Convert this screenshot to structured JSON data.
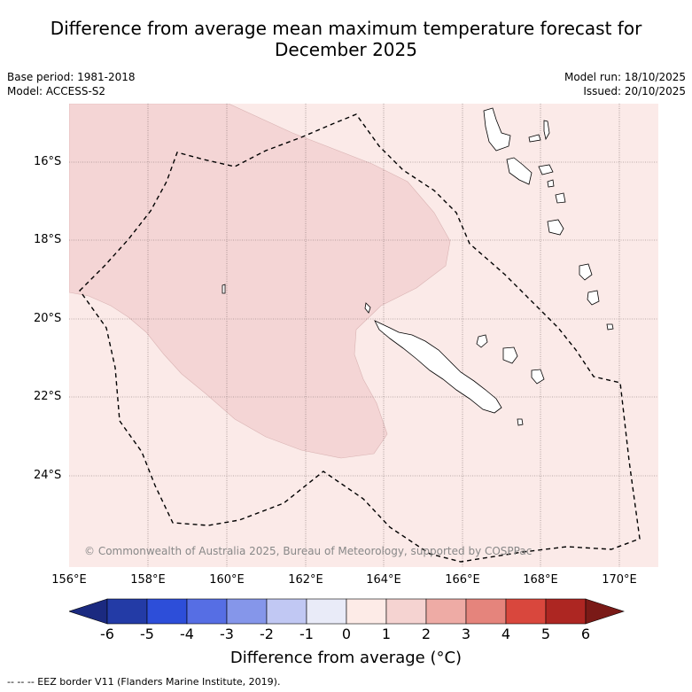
{
  "header": {
    "title_line1": "Difference from average mean maximum temperature forecast for",
    "title_line2": "December 2025",
    "base_period": "Base period: 1981-2018",
    "model": "Model: ACCESS-S2",
    "model_run": "Model run: 18/10/2025",
    "issued": "Issued: 20/10/2025"
  },
  "map": {
    "lat_labels": [
      "16°S",
      "18°S",
      "20°S",
      "22°S",
      "24°S"
    ],
    "lon_labels": [
      "156°E",
      "158°E",
      "160°E",
      "162°E",
      "164°E",
      "166°E",
      "168°E",
      "170°E"
    ],
    "copyright": "© Commonwealth of Australia 2025, Bureau of Meteorology, supported by COSPPac",
    "colors": {
      "anomaly_0_1": "#fbeae8",
      "anomaly_1_2": "#f4d5d5",
      "eez_border": "#000000"
    }
  },
  "colorbar": {
    "ticks": [
      "-6",
      "-5",
      "-4",
      "-3",
      "-2",
      "-1",
      "0",
      "1",
      "2",
      "3",
      "4",
      "5",
      "6"
    ],
    "colors": [
      "#1b2a80",
      "#233ba6",
      "#2d4ed9",
      "#566ee4",
      "#8596ea",
      "#c1c8f3",
      "#e9ebf8",
      "#fdebe7",
      "#f5d3d1",
      "#eeaba5",
      "#e5847c",
      "#d9473d",
      "#ad2622",
      "#7a1a17"
    ],
    "title": "Difference from average (°C)"
  },
  "footer": {
    "legend_text": "--  --  -- EEZ border V11 (Flanders Marine Institute, 2019)."
  }
}
